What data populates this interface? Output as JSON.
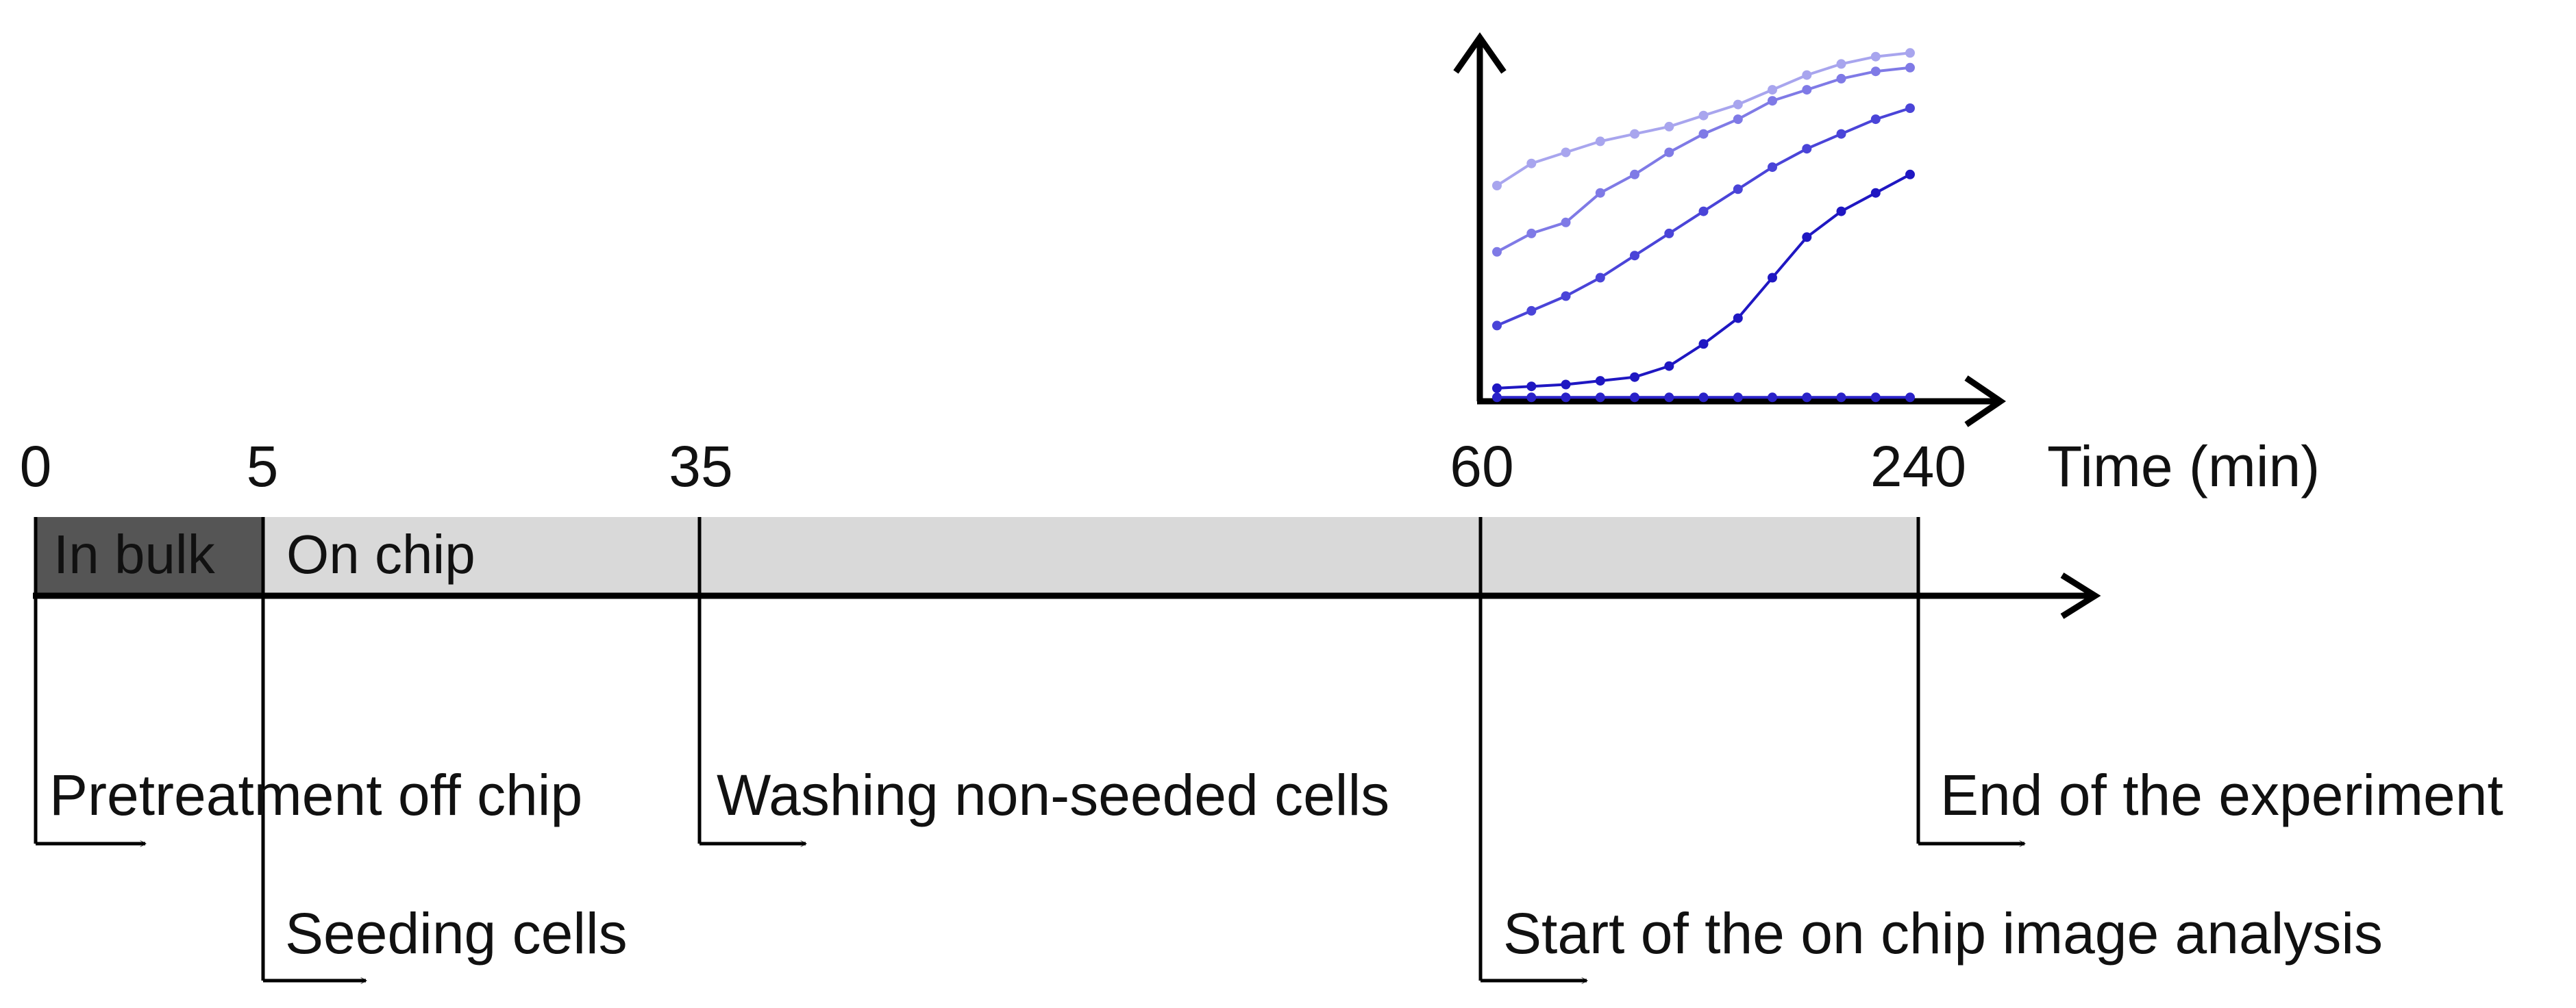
{
  "axis": {
    "label": "Time (min)",
    "ticks": [
      {
        "id": "t0",
        "label": "0"
      },
      {
        "id": "t5",
        "label": "5"
      },
      {
        "id": "t35",
        "label": "35"
      },
      {
        "id": "t60",
        "label": "60"
      },
      {
        "id": "t240",
        "label": "240"
      }
    ]
  },
  "phases": {
    "bulk": {
      "label": "In bulk",
      "color": "#555555",
      "text_color": "#ffffff"
    },
    "chip": {
      "label": "On chip",
      "color": "#d9d9d9",
      "text_color": "#111111"
    }
  },
  "events": [
    {
      "id": "pretreatment",
      "label": "Pretreatment off chip",
      "time": 0
    },
    {
      "id": "seeding",
      "label": "Seeding cells",
      "time": 5
    },
    {
      "id": "washing",
      "label": "Washing non-seeded cells",
      "time": 35
    },
    {
      "id": "image-analysis-start",
      "label": "Start of the on chip image analysis",
      "time": 60
    },
    {
      "id": "end",
      "label": "End of the experiment",
      "time": 240
    }
  ],
  "inset_chart": {
    "type": "line",
    "point_count": 13,
    "series": [
      {
        "color": "#a8a5ee",
        "values": [
          0.58,
          0.64,
          0.67,
          0.7,
          0.72,
          0.74,
          0.77,
          0.8,
          0.84,
          0.88,
          0.91,
          0.93,
          0.94
        ]
      },
      {
        "color": "#7f7ae6",
        "values": [
          0.4,
          0.45,
          0.48,
          0.56,
          0.61,
          0.67,
          0.72,
          0.76,
          0.81,
          0.84,
          0.87,
          0.89,
          0.9
        ]
      },
      {
        "color": "#4a44d8",
        "values": [
          0.2,
          0.24,
          0.28,
          0.33,
          0.39,
          0.45,
          0.51,
          0.57,
          0.63,
          0.68,
          0.72,
          0.76,
          0.79
        ]
      },
      {
        "color": "#1f17c2",
        "values": [
          0.03,
          0.035,
          0.04,
          0.05,
          0.06,
          0.09,
          0.15,
          0.22,
          0.33,
          0.44,
          0.51,
          0.56,
          0.61
        ]
      },
      {
        "color": "#2a22c8",
        "values": [
          0.005,
          0.005,
          0.005,
          0.005,
          0.005,
          0.005,
          0.005,
          0.005,
          0.005,
          0.005,
          0.005,
          0.005,
          0.005
        ]
      }
    ]
  }
}
